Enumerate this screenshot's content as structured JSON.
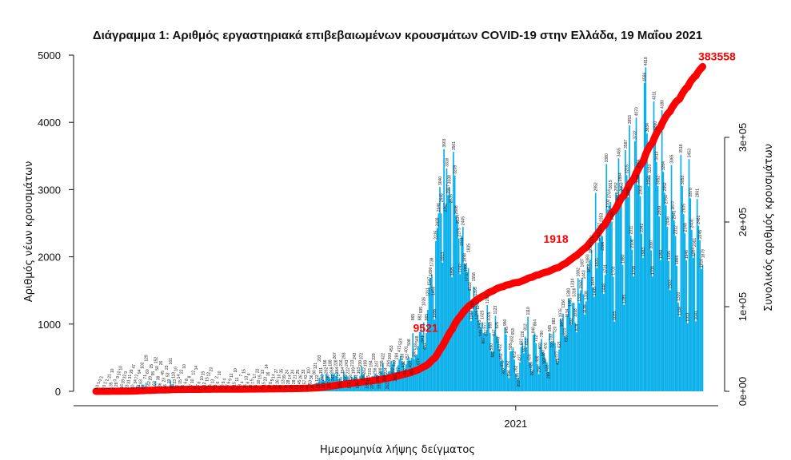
{
  "chart_data": {
    "type": "bar+line",
    "title": "Διάγραμμα 1: Αριθμός εργαστηριακά επιβεβαιωμένων κρουσμάτων COVID-19 στην Ελλάδα, 19 Μαΐου 2021",
    "xlabel": "Ημερομηνία λήψης δείγματος",
    "ylabel": "Αριθμός νέων κρουσμάτων",
    "y2label": "Συνολικός αριθμός κρουσμάτων",
    "x_start": "2020-02-26",
    "x_end": "2021-05-19",
    "x_ticks": [
      {
        "date": "2021-01-01",
        "label": "2021"
      }
    ],
    "ylim": [
      0,
      5000
    ],
    "y_ticks": [
      "0",
      "1000",
      "2000",
      "3000",
      "4000",
      "5000"
    ],
    "y2lim": [
      0,
      400000
    ],
    "y2_ticks": [
      {
        "value": 0,
        "label": "0e+00"
      },
      {
        "value": 100000,
        "label": "1e+05"
      },
      {
        "value": 200000,
        "label": "2e+05"
      },
      {
        "value": 300000,
        "label": "3e+05"
      }
    ],
    "bar_color": "#0bb0ea",
    "line_color": "#ff0000",
    "grid": false,
    "daily_cases": [
      1,
      0,
      1,
      0,
      2,
      0,
      0,
      2,
      2,
      1,
      21,
      35,
      10,
      7,
      0,
      28,
      9,
      10,
      10,
      16,
      18,
      32,
      9,
      23,
      31,
      31,
      29,
      40,
      47,
      34,
      72,
      71,
      94,
      63,
      102,
      54,
      71,
      129,
      60,
      62,
      29,
      25,
      55,
      60,
      152,
      50,
      38,
      36,
      26,
      45,
      23,
      16,
      23,
      53,
      19,
      161,
      49,
      110,
      23,
      10,
      77,
      14,
      15,
      22,
      16,
      10,
      6,
      8,
      5,
      8,
      7,
      10,
      12,
      8,
      14,
      7,
      6,
      3,
      10,
      15,
      12,
      9,
      15,
      12,
      5,
      20,
      13,
      8,
      3,
      2,
      6,
      10,
      4,
      6,
      9,
      4,
      4,
      7,
      6,
      9,
      12,
      5,
      15,
      10,
      11,
      5,
      8,
      7,
      4,
      15,
      26,
      13,
      6,
      4,
      10,
      5,
      7,
      17,
      14,
      22,
      10,
      15,
      8,
      13,
      15,
      23,
      14,
      16,
      10,
      8,
      9,
      14,
      12,
      27,
      26,
      10,
      19,
      35,
      13,
      39,
      30,
      24,
      28,
      14,
      26,
      24,
      28,
      21,
      15,
      25,
      45,
      26,
      31,
      33,
      57,
      43,
      44,
      110,
      53,
      36,
      39,
      80,
      121,
      122,
      125,
      203,
      151,
      262,
      169,
      156,
      262,
      230,
      217,
      188,
      269,
      242,
      267,
      228,
      284,
      171,
      185,
      216,
      154,
      293,
      209,
      243,
      222,
      175,
      156,
      213,
      199,
      243,
      221,
      135,
      163,
      230,
      372,
      250,
      262,
      199,
      186,
      115,
      201,
      194,
      227,
      229,
      256,
      247,
      240,
      192,
      288,
      295,
      422,
      268,
      224,
      263,
      294,
      300,
      453,
      402,
      460,
      283,
      284,
      387,
      471,
      524,
      438,
      432,
      322,
      401,
      457,
      508,
      459,
      497,
      865,
      480,
      538,
      548,
      674,
      882,
      935,
      841,
      1026,
      651,
      865,
      1211,
      1547,
      1690,
      1738,
      1498,
      1066,
      2235,
      2428,
      2646,
      3040,
      2646,
      1913,
      3603,
      2752,
      3316,
      2917,
      3038,
      2835,
      1695,
      3561,
      3209,
      2608,
      2534,
      2275,
      1742,
      2311,
      2445,
      1898,
      1891,
      1770,
      1835,
      1522,
      1044,
      1193,
      1558,
      1395,
      1286,
      1141,
      1025,
      949,
      1025,
      867,
      877,
      847,
      1283,
      1025,
      869,
      590,
      582,
      847,
      1123,
      825,
      779,
      622,
      442,
      472,
      322,
      950,
      845,
      262,
      196,
      595,
      602,
      653,
      472,
      262,
      186,
      202,
      427,
      662,
      726,
      567,
      812,
      653,
      1110,
      430,
      420,
      292,
      840,
      864,
      712,
      406,
      256,
      660,
      780,
      583,
      568,
      476,
      433,
      289,
      865,
      733,
      723,
      883,
      720,
      477,
      429,
      621,
      1076,
      1041,
      1156,
      820,
      813,
      1134,
      1380,
      1355,
      992,
      1314,
      1316,
      1018,
      878,
      1682,
      1311,
      1502,
      1687,
      1443,
      1139,
      1338,
      1883,
      1814,
      1956,
      2102,
      1544,
      1405,
      2952,
      1831,
      2212,
      2277,
      2353,
      2306,
      1448,
      1731,
      3380,
      2702,
      2764,
      2815,
      2525,
      1703,
      1035,
      2952,
      2910,
      3465,
      2894,
      3053,
      1880,
      1285,
      3587,
      3215,
      2885,
      3953,
      2311,
      2106,
      1708,
      3722,
      4070,
      3068,
      3295,
      2903,
      2342,
      1983,
      4586,
      4818,
      3834,
      3050,
      3220,
      2097,
      1708,
      4311,
      3860,
      3413,
      3052,
      2600,
      1950,
      4180,
      3264,
      2952,
      2764,
      2446,
      1935,
      1503,
      3365,
      2677,
      2541,
      2312,
      1866,
      1320,
      1108,
      3518,
      3053,
      2635,
      2349,
      1946,
      1013,
      3453,
      2870,
      2403,
      1984,
      2061,
      1041,
      2861,
      2461,
      2245,
      1816,
      1879
    ],
    "annotations": [
      {
        "text": "9521",
        "date": "2020-11-11"
      },
      {
        "text": "1918",
        "date": "2021-02-20"
      },
      {
        "text": "383558",
        "date": "2021-05-19"
      }
    ]
  }
}
